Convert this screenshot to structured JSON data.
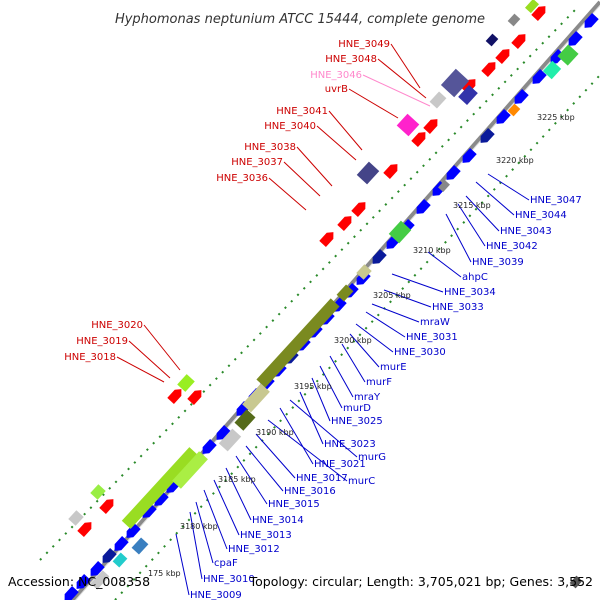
{
  "title": "Hyphomonas neptunium ATCC 15444, complete genome",
  "footer": {
    "accession": "Accession: NC_008358",
    "summary": "Topology: circular; Length: 3,705,021 bp; Genes: 3,552"
  },
  "colors": {
    "forward_label": "#cc0000",
    "reverse_label": "#0000cc",
    "highlight_label": "#ff88cc",
    "backbone": "#999999",
    "forward_gene": "#ff0000",
    "reverse_gene": "#0000ff"
  },
  "ticks": [
    "175 kbp",
    "3180 kbp",
    "3185 kbp",
    "3190 kbp",
    "3195 kbp",
    "3200 kbp",
    "3205 kbp",
    "3210 kbp",
    "3215 kbp",
    "3220 kbp",
    "3225 kbp"
  ],
  "forward_labels": [
    "HNE_3049",
    "HNE_3048",
    "HNE_3046",
    "uvrB",
    "HNE_3041",
    "HNE_3040",
    "HNE_3038",
    "HNE_3037",
    "HNE_3036",
    "HNE_3020",
    "HNE_3019",
    "HNE_3018"
  ],
  "reverse_labels": [
    "HNE_3047",
    "HNE_3044",
    "HNE_3043",
    "HNE_3042",
    "HNE_3039",
    "ahpC",
    "HNE_3034",
    "HNE_3033",
    "mraW",
    "HNE_3031",
    "HNE_3030",
    "murE",
    "murF",
    "mraY",
    "murD",
    "HNE_3025",
    "HNE_3023",
    "murG",
    "HNE_3021",
    "murC",
    "HNE_3017",
    "HNE_3016",
    "HNE_3015",
    "HNE_3014",
    "HNE_3013",
    "HNE_3012",
    "cpaF",
    "HNE_3010",
    "HNE_3009"
  ]
}
